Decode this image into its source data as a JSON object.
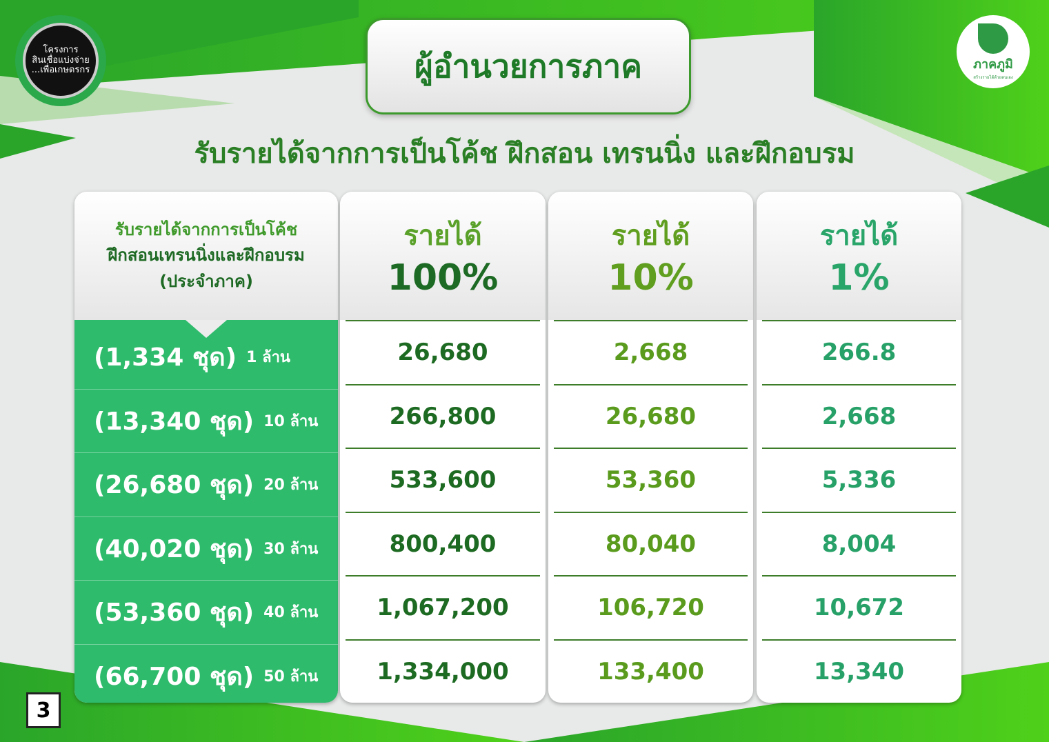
{
  "colors": {
    "brand_green": "#2fbb6c",
    "dark_green": "#1e6a24",
    "title_green": "#1f7a27"
  },
  "logos": {
    "left": {
      "lines": [
        "โครงการ",
        "สินเชื่อแบ่งจ่าย",
        "...เพื่อเกษตรกร"
      ]
    },
    "right": {
      "name": "ภาคภูมิ",
      "tagline": "สร้างรายได้ด้วยตนเอง",
      "icon": "leaf-icon"
    }
  },
  "title": "ผู้อำนวยการภาค",
  "subtitle": "รับรายได้จากการเป็นโค้ช ฝึกสอน เทรนนิ่ง และฝึกอบรม",
  "table": {
    "row_header": {
      "line1": "รับรายได้จากการเป็นโค้ช",
      "line2": "ฝึกสอนเทรนนิ่งและฝึกอบรม",
      "line3": "(ประจำภาค)"
    },
    "columns": [
      {
        "label": "รายได้",
        "pct": "100%"
      },
      {
        "label": "รายได้",
        "pct": "10%"
      },
      {
        "label": "รายได้",
        "pct": "1%"
      }
    ],
    "rows": [
      {
        "sets": "(1,334 ชุด)",
        "amount": "1 ล้าน",
        "values": [
          "26,680",
          "2,668",
          "266.8"
        ]
      },
      {
        "sets": "(13,340 ชุด)",
        "amount": "10 ล้าน",
        "values": [
          "266,800",
          "26,680",
          "2,668"
        ]
      },
      {
        "sets": "(26,680 ชุด)",
        "amount": "20 ล้าน",
        "values": [
          "533,600",
          "53,360",
          "5,336"
        ]
      },
      {
        "sets": "(40,020 ชุด)",
        "amount": "30 ล้าน",
        "values": [
          "800,400",
          "80,040",
          "8,004"
        ]
      },
      {
        "sets": "(53,360 ชุด)",
        "amount": "40 ล้าน",
        "values": [
          "1,067,200",
          "106,720",
          "10,672"
        ]
      },
      {
        "sets": "(66,700 ชุด)",
        "amount": "50 ล้าน",
        "values": [
          "1,334,000",
          "133,400",
          "13,340"
        ]
      }
    ]
  },
  "page_number": "3"
}
